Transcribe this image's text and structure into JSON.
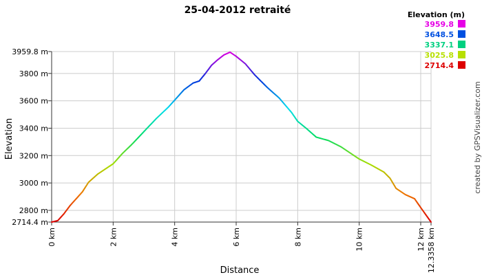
{
  "chart_data": {
    "type": "line",
    "title": "25-04-2012 retraité",
    "xlabel": "Distance",
    "ylabel": "Elevation",
    "xlim": [
      0,
      12.3358
    ],
    "ylim": [
      2714.4,
      3959.8
    ],
    "x_ticks": [
      "0 km",
      "2 km",
      "4 km",
      "6 km",
      "8 km",
      "10 km",
      "12 km",
      "12.3358 km"
    ],
    "x_tick_values": [
      0,
      2,
      4,
      6,
      8,
      10,
      12,
      12.3358
    ],
    "y_ticks": [
      "2714.4 m",
      "2800 m",
      "3000 m",
      "3200 m",
      "3400 m",
      "3600 m",
      "3800 m",
      "3959.8 m"
    ],
    "y_tick_values": [
      2714.4,
      2800,
      3000,
      3200,
      3400,
      3600,
      3800,
      3959.8
    ],
    "grid": true,
    "legend": {
      "title": "Elevation (m)",
      "placement": "top-right",
      "entries": [
        {
          "label": "3959.8",
          "color": "#e600e6"
        },
        {
          "label": "3648.5",
          "color": "#0050e0"
        },
        {
          "label": "3337.1",
          "color": "#00d080"
        },
        {
          "label": "3025.8",
          "color": "#b8e000"
        },
        {
          "label": "2714.4",
          "color": "#dd0000"
        }
      ]
    },
    "color_scale": [
      "#e000e0",
      "#0033dd",
      "#00ddee",
      "#00dd66",
      "#aadd00",
      "#ee7700",
      "#dd0000"
    ],
    "series": [
      {
        "x": [
          0,
          0.2,
          0.4,
          0.6,
          0.8,
          1.0,
          1.2,
          1.5,
          1.8,
          2.0,
          2.3,
          2.6,
          3.0,
          3.4,
          3.8,
          4.0,
          4.3,
          4.6,
          4.8,
          5.0,
          5.2,
          5.4,
          5.6,
          5.8,
          6.0,
          6.3,
          6.6,
          7.0,
          7.4,
          7.8,
          8.0,
          8.3,
          8.6,
          9.0,
          9.4,
          9.8,
          10.0,
          10.4,
          10.8,
          11.0,
          11.2,
          11.5,
          11.8,
          12.0,
          12.3358
        ],
        "y": [
          2714.4,
          2725,
          2775,
          2835,
          2885,
          2935,
          3005,
          3065,
          3110,
          3140,
          3215,
          3280,
          3375,
          3470,
          3555,
          3605,
          3680,
          3730,
          3745,
          3800,
          3860,
          3900,
          3935,
          3955,
          3925,
          3870,
          3790,
          3700,
          3620,
          3515,
          3450,
          3395,
          3335,
          3310,
          3265,
          3205,
          3175,
          3130,
          3080,
          3035,
          2960,
          2915,
          2885,
          2820,
          2714.4
        ]
      }
    ]
  },
  "credit": "created by GPSVisualizer.com"
}
